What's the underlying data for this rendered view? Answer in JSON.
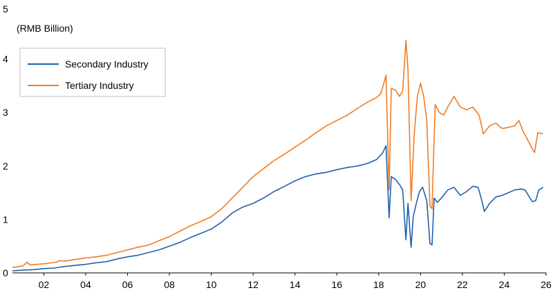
{
  "colors": {
    "secondary": "#1f5fa8",
    "tertiary": "#f07b22",
    "axis": "#000000",
    "legend_border": "#bfbfbf"
  },
  "chart_data": {
    "type": "line",
    "unit_label": "(RMB Billion)",
    "xlabel": "",
    "ylabel": "",
    "xlim": [
      2000.5,
      2026.0
    ],
    "ylim": [
      0,
      5
    ],
    "x_ticks": [
      "02",
      "04",
      "06",
      "08",
      "10",
      "12",
      "14",
      "16",
      "18",
      "20",
      "22",
      "24",
      "26"
    ],
    "y_ticks": [
      "0",
      "1",
      "2",
      "3",
      "4",
      "5"
    ],
    "grid": false,
    "legend_position": "upper-left",
    "series": [
      {
        "name": "Secondary Industry",
        "color": "#1f5fa8",
        "points": [
          [
            2000.5,
            0.04
          ],
          [
            2001.0,
            0.05
          ],
          [
            2001.5,
            0.06
          ],
          [
            2002.0,
            0.08
          ],
          [
            2002.5,
            0.09
          ],
          [
            2003.0,
            0.12
          ],
          [
            2003.5,
            0.14
          ],
          [
            2004.0,
            0.16
          ],
          [
            2004.5,
            0.19
          ],
          [
            2005.0,
            0.21
          ],
          [
            2005.5,
            0.26
          ],
          [
            2006.0,
            0.3
          ],
          [
            2006.5,
            0.33
          ],
          [
            2007.0,
            0.38
          ],
          [
            2007.5,
            0.43
          ],
          [
            2008.0,
            0.5
          ],
          [
            2008.5,
            0.57
          ],
          [
            2009.0,
            0.66
          ],
          [
            2009.5,
            0.74
          ],
          [
            2010.0,
            0.82
          ],
          [
            2010.5,
            0.95
          ],
          [
            2011.0,
            1.12
          ],
          [
            2011.5,
            1.23
          ],
          [
            2012.0,
            1.3
          ],
          [
            2012.5,
            1.4
          ],
          [
            2013.0,
            1.52
          ],
          [
            2013.5,
            1.62
          ],
          [
            2014.0,
            1.72
          ],
          [
            2014.5,
            1.8
          ],
          [
            2015.0,
            1.85
          ],
          [
            2015.5,
            1.88
          ],
          [
            2016.0,
            1.93
          ],
          [
            2016.5,
            1.97
          ],
          [
            2017.0,
            2.0
          ],
          [
            2017.5,
            2.05
          ],
          [
            2017.9,
            2.12
          ],
          [
            2018.2,
            2.25
          ],
          [
            2018.35,
            2.38
          ],
          [
            2018.5,
            1.03
          ],
          [
            2018.6,
            1.8
          ],
          [
            2018.8,
            1.75
          ],
          [
            2019.0,
            1.65
          ],
          [
            2019.15,
            1.55
          ],
          [
            2019.3,
            0.62
          ],
          [
            2019.4,
            1.3
          ],
          [
            2019.55,
            0.48
          ],
          [
            2019.65,
            1.05
          ],
          [
            2019.8,
            1.3
          ],
          [
            2019.95,
            1.52
          ],
          [
            2020.1,
            1.6
          ],
          [
            2020.3,
            1.35
          ],
          [
            2020.45,
            0.55
          ],
          [
            2020.55,
            0.52
          ],
          [
            2020.65,
            1.4
          ],
          [
            2020.8,
            1.32
          ],
          [
            2021.0,
            1.4
          ],
          [
            2021.3,
            1.55
          ],
          [
            2021.6,
            1.6
          ],
          [
            2021.9,
            1.45
          ],
          [
            2022.2,
            1.52
          ],
          [
            2022.5,
            1.62
          ],
          [
            2022.75,
            1.6
          ],
          [
            2022.9,
            1.4
          ],
          [
            2023.05,
            1.15
          ],
          [
            2023.3,
            1.3
          ],
          [
            2023.6,
            1.42
          ],
          [
            2023.9,
            1.45
          ],
          [
            2024.2,
            1.5
          ],
          [
            2024.5,
            1.55
          ],
          [
            2024.8,
            1.57
          ],
          [
            2025.0,
            1.55
          ],
          [
            2025.2,
            1.42
          ],
          [
            2025.35,
            1.33
          ],
          [
            2025.5,
            1.35
          ],
          [
            2025.65,
            1.55
          ],
          [
            2025.85,
            1.6
          ]
        ]
      },
      {
        "name": "Tertiary Industry",
        "color": "#f07b22",
        "points": [
          [
            2000.5,
            0.1
          ],
          [
            2001.0,
            0.13
          ],
          [
            2001.2,
            0.2
          ],
          [
            2001.35,
            0.15
          ],
          [
            2002.0,
            0.17
          ],
          [
            2002.6,
            0.2
          ],
          [
            2002.75,
            0.23
          ],
          [
            2003.0,
            0.22
          ],
          [
            2003.5,
            0.25
          ],
          [
            2004.0,
            0.28
          ],
          [
            2004.5,
            0.3
          ],
          [
            2005.0,
            0.33
          ],
          [
            2005.5,
            0.38
          ],
          [
            2006.0,
            0.43
          ],
          [
            2006.5,
            0.48
          ],
          [
            2007.0,
            0.52
          ],
          [
            2007.5,
            0.6
          ],
          [
            2008.0,
            0.68
          ],
          [
            2008.5,
            0.78
          ],
          [
            2009.0,
            0.88
          ],
          [
            2009.5,
            0.96
          ],
          [
            2010.0,
            1.05
          ],
          [
            2010.5,
            1.2
          ],
          [
            2011.0,
            1.4
          ],
          [
            2011.5,
            1.6
          ],
          [
            2012.0,
            1.8
          ],
          [
            2012.5,
            1.95
          ],
          [
            2013.0,
            2.1
          ],
          [
            2013.5,
            2.22
          ],
          [
            2014.0,
            2.35
          ],
          [
            2014.5,
            2.48
          ],
          [
            2015.0,
            2.62
          ],
          [
            2015.5,
            2.75
          ],
          [
            2016.0,
            2.85
          ],
          [
            2016.5,
            2.95
          ],
          [
            2017.0,
            3.08
          ],
          [
            2017.5,
            3.2
          ],
          [
            2017.9,
            3.28
          ],
          [
            2018.1,
            3.35
          ],
          [
            2018.25,
            3.55
          ],
          [
            2018.35,
            3.7
          ],
          [
            2018.5,
            1.55
          ],
          [
            2018.6,
            3.45
          ],
          [
            2018.8,
            3.42
          ],
          [
            2019.0,
            3.3
          ],
          [
            2019.15,
            3.4
          ],
          [
            2019.3,
            4.35
          ],
          [
            2019.4,
            3.8
          ],
          [
            2019.55,
            1.35
          ],
          [
            2019.7,
            2.6
          ],
          [
            2019.85,
            3.3
          ],
          [
            2020.0,
            3.55
          ],
          [
            2020.15,
            3.3
          ],
          [
            2020.3,
            2.85
          ],
          [
            2020.45,
            1.25
          ],
          [
            2020.55,
            1.2
          ],
          [
            2020.7,
            3.15
          ],
          [
            2020.9,
            3.0
          ],
          [
            2021.1,
            2.95
          ],
          [
            2021.3,
            3.1
          ],
          [
            2021.6,
            3.3
          ],
          [
            2021.9,
            3.1
          ],
          [
            2022.2,
            3.05
          ],
          [
            2022.5,
            3.1
          ],
          [
            2022.8,
            2.95
          ],
          [
            2023.0,
            2.6
          ],
          [
            2023.3,
            2.75
          ],
          [
            2023.6,
            2.8
          ],
          [
            2023.9,
            2.7
          ],
          [
            2024.2,
            2.72
          ],
          [
            2024.5,
            2.75
          ],
          [
            2024.7,
            2.85
          ],
          [
            2024.9,
            2.65
          ],
          [
            2025.1,
            2.5
          ],
          [
            2025.3,
            2.35
          ],
          [
            2025.45,
            2.25
          ],
          [
            2025.6,
            2.62
          ],
          [
            2025.85,
            2.6
          ]
        ]
      }
    ]
  }
}
